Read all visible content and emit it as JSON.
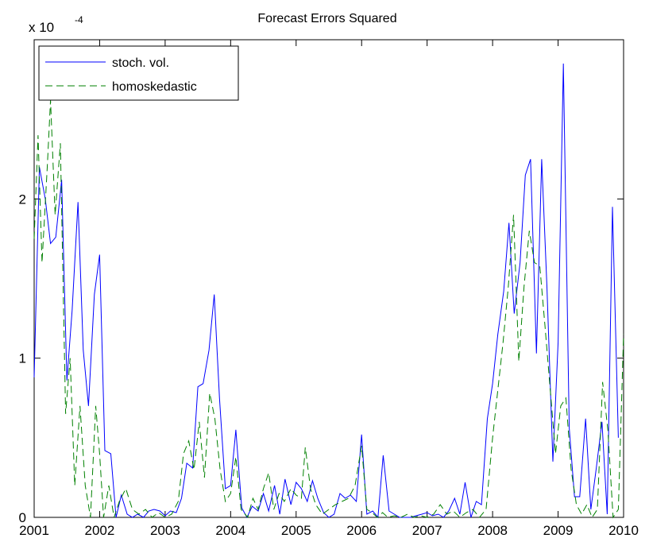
{
  "chart_data": {
    "type": "line",
    "title": "Forecast Errors Squared",
    "xlabel": "",
    "ylabel": "",
    "y_scale_label": {
      "base": "x 10",
      "exponent": "-4"
    },
    "xlim": [
      2001,
      2010
    ],
    "ylim": [
      0,
      3
    ],
    "x_ticks": [
      2001,
      2002,
      2003,
      2004,
      2005,
      2006,
      2007,
      2008,
      2009,
      2010
    ],
    "y_ticks": [
      0,
      1,
      2
    ],
    "grid": false,
    "legend_position": "top-left",
    "series": [
      {
        "name": "stoch. vol.",
        "color": "#0000ff",
        "style": "solid",
        "points": [
          [
            2001.0,
            0.88
          ],
          [
            2001.08,
            2.2
          ],
          [
            2001.17,
            2.0
          ],
          [
            2001.25,
            1.72
          ],
          [
            2001.33,
            1.76
          ],
          [
            2001.42,
            2.12
          ],
          [
            2001.5,
            0.86
          ],
          [
            2001.58,
            1.3
          ],
          [
            2001.67,
            1.98
          ],
          [
            2001.75,
            1.05
          ],
          [
            2001.83,
            0.7
          ],
          [
            2001.92,
            1.4
          ],
          [
            2002.0,
            1.65
          ],
          [
            2002.08,
            0.42
          ],
          [
            2002.17,
            0.4
          ],
          [
            2002.25,
            0.0
          ],
          [
            2002.33,
            0.14
          ],
          [
            2002.42,
            0.02
          ],
          [
            2002.5,
            0.0
          ],
          [
            2002.58,
            0.02
          ],
          [
            2002.67,
            0.0
          ],
          [
            2002.75,
            0.04
          ],
          [
            2002.83,
            0.05
          ],
          [
            2002.92,
            0.04
          ],
          [
            2003.0,
            0.01
          ],
          [
            2003.08,
            0.04
          ],
          [
            2003.17,
            0.03
          ],
          [
            2003.25,
            0.12
          ],
          [
            2003.33,
            0.34
          ],
          [
            2003.42,
            0.31
          ],
          [
            2003.5,
            0.82
          ],
          [
            2003.58,
            0.84
          ],
          [
            2003.67,
            1.05
          ],
          [
            2003.75,
            1.4
          ],
          [
            2003.83,
            0.75
          ],
          [
            2003.92,
            0.18
          ],
          [
            2004.0,
            0.2
          ],
          [
            2004.08,
            0.55
          ],
          [
            2004.17,
            0.06
          ],
          [
            2004.25,
            0.0
          ],
          [
            2004.33,
            0.07
          ],
          [
            2004.42,
            0.04
          ],
          [
            2004.5,
            0.15
          ],
          [
            2004.58,
            0.04
          ],
          [
            2004.67,
            0.2
          ],
          [
            2004.75,
            0.02
          ],
          [
            2004.83,
            0.24
          ],
          [
            2004.92,
            0.08
          ],
          [
            2005.0,
            0.22
          ],
          [
            2005.08,
            0.18
          ],
          [
            2005.17,
            0.1
          ],
          [
            2005.25,
            0.23
          ],
          [
            2005.33,
            0.12
          ],
          [
            2005.42,
            0.03
          ],
          [
            2005.5,
            0.0
          ],
          [
            2005.58,
            0.02
          ],
          [
            2005.67,
            0.15
          ],
          [
            2005.75,
            0.12
          ],
          [
            2005.83,
            0.14
          ],
          [
            2005.92,
            0.1
          ],
          [
            2006.0,
            0.52
          ],
          [
            2006.08,
            0.02
          ],
          [
            2006.17,
            0.04
          ],
          [
            2006.25,
            0.0
          ],
          [
            2006.33,
            0.39
          ],
          [
            2006.42,
            0.04
          ],
          [
            2006.5,
            0.02
          ],
          [
            2006.58,
            0.0
          ],
          [
            2006.67,
            0.0
          ],
          [
            2006.75,
            0.0
          ],
          [
            2006.83,
            0.01
          ],
          [
            2006.92,
            0.02
          ],
          [
            2007.0,
            0.03
          ],
          [
            2007.08,
            0.01
          ],
          [
            2007.17,
            0.02
          ],
          [
            2007.25,
            0.0
          ],
          [
            2007.33,
            0.04
          ],
          [
            2007.42,
            0.12
          ],
          [
            2007.5,
            0.02
          ],
          [
            2007.58,
            0.22
          ],
          [
            2007.67,
            0.0
          ],
          [
            2007.75,
            0.1
          ],
          [
            2007.83,
            0.08
          ],
          [
            2007.92,
            0.62
          ],
          [
            2008.0,
            0.84
          ],
          [
            2008.08,
            1.15
          ],
          [
            2008.17,
            1.42
          ],
          [
            2008.25,
            1.85
          ],
          [
            2008.33,
            1.28
          ],
          [
            2008.42,
            1.6
          ],
          [
            2008.5,
            2.15
          ],
          [
            2008.58,
            2.25
          ],
          [
            2008.67,
            1.03
          ],
          [
            2008.75,
            2.25
          ],
          [
            2008.83,
            1.45
          ],
          [
            2008.92,
            0.35
          ],
          [
            2009.0,
            1.1
          ],
          [
            2009.08,
            2.85
          ],
          [
            2009.17,
            0.56
          ],
          [
            2009.25,
            0.13
          ],
          [
            2009.33,
            0.13
          ],
          [
            2009.42,
            0.62
          ],
          [
            2009.5,
            0.05
          ],
          [
            2009.58,
            0.3
          ],
          [
            2009.67,
            0.6
          ],
          [
            2009.75,
            0.02
          ],
          [
            2009.83,
            1.95
          ],
          [
            2009.92,
            0.5
          ]
        ]
      },
      {
        "name": "homoskedastic",
        "color": "#008000",
        "style": "dashed",
        "points": [
          [
            2001.0,
            1.75
          ],
          [
            2001.06,
            2.4
          ],
          [
            2001.12,
            1.6
          ],
          [
            2001.2,
            2.2
          ],
          [
            2001.25,
            2.62
          ],
          [
            2001.32,
            1.9
          ],
          [
            2001.4,
            2.35
          ],
          [
            2001.48,
            0.65
          ],
          [
            2001.55,
            1.0
          ],
          [
            2001.62,
            0.2
          ],
          [
            2001.7,
            0.7
          ],
          [
            2001.78,
            0.2
          ],
          [
            2001.86,
            0.0
          ],
          [
            2001.94,
            0.7
          ],
          [
            2002.0,
            0.4
          ],
          [
            2002.06,
            0.0
          ],
          [
            2002.14,
            0.2
          ],
          [
            2002.22,
            0.0
          ],
          [
            2002.3,
            0.1
          ],
          [
            2002.4,
            0.18
          ],
          [
            2002.5,
            0.05
          ],
          [
            2002.6,
            0.02
          ],
          [
            2002.7,
            0.05
          ],
          [
            2002.8,
            0.0
          ],
          [
            2002.9,
            0.03
          ],
          [
            2003.0,
            0.0
          ],
          [
            2003.1,
            0.02
          ],
          [
            2003.2,
            0.1
          ],
          [
            2003.28,
            0.4
          ],
          [
            2003.36,
            0.48
          ],
          [
            2003.44,
            0.3
          ],
          [
            2003.52,
            0.6
          ],
          [
            2003.6,
            0.25
          ],
          [
            2003.68,
            0.78
          ],
          [
            2003.76,
            0.62
          ],
          [
            2003.84,
            0.3
          ],
          [
            2003.92,
            0.1
          ],
          [
            2004.0,
            0.15
          ],
          [
            2004.08,
            0.38
          ],
          [
            2004.16,
            0.05
          ],
          [
            2004.26,
            0.0
          ],
          [
            2004.34,
            0.12
          ],
          [
            2004.42,
            0.05
          ],
          [
            2004.5,
            0.18
          ],
          [
            2004.58,
            0.28
          ],
          [
            2004.66,
            0.05
          ],
          [
            2004.74,
            0.15
          ],
          [
            2004.82,
            0.1
          ],
          [
            2004.92,
            0.18
          ],
          [
            2005.0,
            0.14
          ],
          [
            2005.08,
            0.12
          ],
          [
            2005.14,
            0.44
          ],
          [
            2005.22,
            0.18
          ],
          [
            2005.3,
            0.08
          ],
          [
            2005.4,
            0.02
          ],
          [
            2005.5,
            0.05
          ],
          [
            2005.6,
            0.08
          ],
          [
            2005.7,
            0.1
          ],
          [
            2005.8,
            0.12
          ],
          [
            2005.9,
            0.2
          ],
          [
            2006.0,
            0.45
          ],
          [
            2006.08,
            0.05
          ],
          [
            2006.16,
            0.03
          ],
          [
            2006.24,
            0.0
          ],
          [
            2006.32,
            0.03
          ],
          [
            2006.4,
            0.0
          ],
          [
            2006.5,
            0.01
          ],
          [
            2006.6,
            0.0
          ],
          [
            2006.7,
            0.02
          ],
          [
            2006.8,
            0.0
          ],
          [
            2006.9,
            0.01
          ],
          [
            2007.0,
            0.0
          ],
          [
            2007.1,
            0.02
          ],
          [
            2007.2,
            0.08
          ],
          [
            2007.3,
            0.02
          ],
          [
            2007.4,
            0.04
          ],
          [
            2007.5,
            0.0
          ],
          [
            2007.6,
            0.03
          ],
          [
            2007.7,
            0.05
          ],
          [
            2007.8,
            0.0
          ],
          [
            2007.9,
            0.05
          ],
          [
            2008.0,
            0.5
          ],
          [
            2008.08,
            0.8
          ],
          [
            2008.16,
            1.1
          ],
          [
            2008.24,
            1.45
          ],
          [
            2008.32,
            1.9
          ],
          [
            2008.4,
            0.98
          ],
          [
            2008.48,
            1.45
          ],
          [
            2008.56,
            1.8
          ],
          [
            2008.64,
            1.6
          ],
          [
            2008.72,
            1.58
          ],
          [
            2008.8,
            1.2
          ],
          [
            2008.88,
            0.8
          ],
          [
            2008.96,
            0.4
          ],
          [
            2009.04,
            0.7
          ],
          [
            2009.12,
            0.75
          ],
          [
            2009.2,
            0.3
          ],
          [
            2009.28,
            0.08
          ],
          [
            2009.36,
            0.02
          ],
          [
            2009.44,
            0.08
          ],
          [
            2009.52,
            0.0
          ],
          [
            2009.6,
            0.05
          ],
          [
            2009.68,
            0.85
          ],
          [
            2009.76,
            0.55
          ],
          [
            2009.84,
            0.0
          ],
          [
            2009.92,
            0.05
          ],
          [
            2010.0,
            1.15
          ]
        ]
      }
    ]
  }
}
